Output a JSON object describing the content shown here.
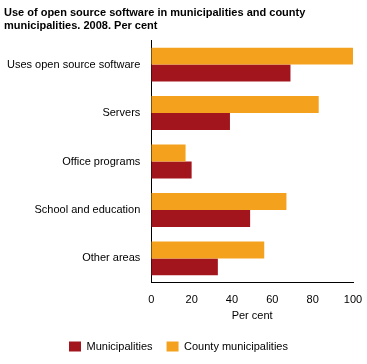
{
  "chart_data": {
    "type": "bar",
    "orientation": "horizontal",
    "title": "Use of open source software in municipalities and county municipalities. 2008. Per cent",
    "x_label": "Per cent",
    "categories": [
      "Uses open source software",
      "Servers",
      "Office programs",
      "School and education",
      "Other areas"
    ],
    "series": [
      {
        "name": "Municipalities",
        "color": "#a3151d",
        "values": [
          69,
          39,
          20,
          49,
          33
        ]
      },
      {
        "name": "County municipalities",
        "color": "#f4a11d",
        "values": [
          100,
          83,
          17,
          67,
          56
        ]
      }
    ],
    "xlim": [
      0,
      100
    ],
    "xticks": [
      0,
      20,
      40,
      60,
      80,
      100
    ],
    "grid": false,
    "legend": "bottom"
  }
}
